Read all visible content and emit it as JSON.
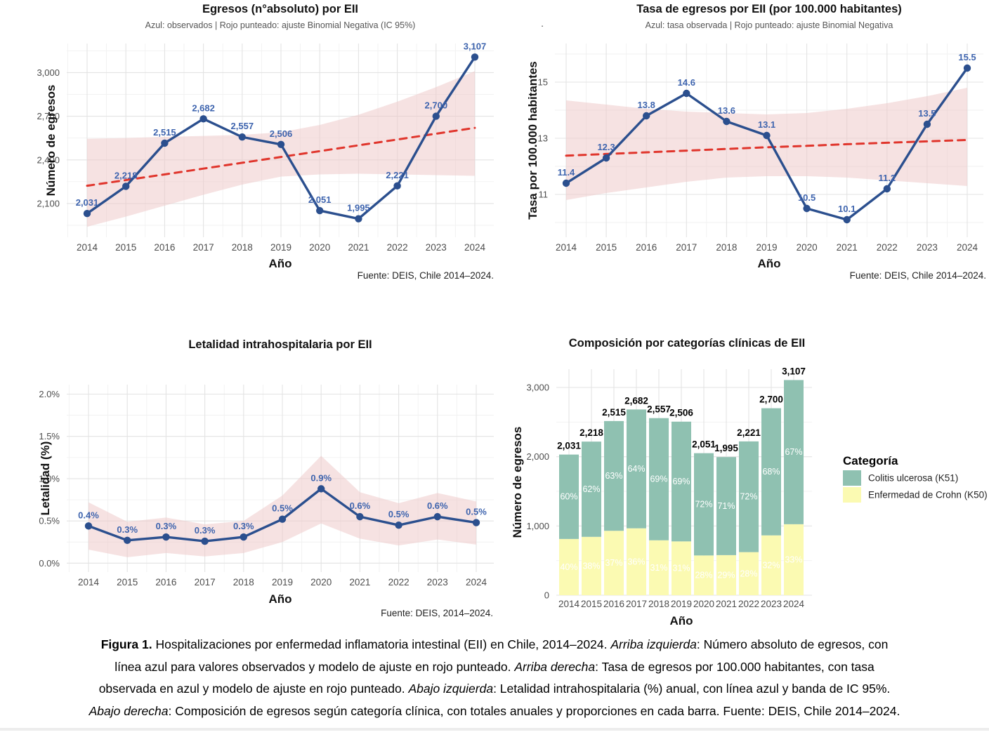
{
  "colors": {
    "blue_line": "#2b4f8e",
    "blue_point": "#2b4f8e",
    "blue_label": "#3e64ae",
    "red_dashed": "#e0352c",
    "ci_band": "#eec7c7",
    "teal": "#8fc1b1",
    "yellow": "#fbfab2",
    "grid_major": "#e3e3e3",
    "grid_minor": "#f1f1f1",
    "tick_text": "#4d4d4d",
    "subtitle_text": "#555555",
    "title_text": "#111111",
    "pct_text": "#ffffff",
    "source_text": "#222222"
  },
  "chart_data": [
    {
      "type": "line",
      "id": "egresos",
      "title": "Egresos (n°absoluto) por EII",
      "subtitle": "Azul: observados | Rojo punteado: ajuste Binomial Negativa (IC 95%)",
      "xlabel": "Año",
      "ylabel": "Número de egresos",
      "source": "Fuente: DEIS, Chile 2014–2024.",
      "categories": [
        "2014",
        "2015",
        "2016",
        "2017",
        "2018",
        "2019",
        "2020",
        "2021",
        "2022",
        "2023",
        "2024"
      ],
      "values": [
        2031,
        2218,
        2515,
        2682,
        2557,
        2506,
        2051,
        1995,
        2221,
        2700,
        3107
      ],
      "point_labels": [
        "2,031",
        "2,218",
        "2,515",
        "2,682",
        "2,557",
        "2,506",
        "2,051",
        "1,995",
        "2,221",
        "2,700",
        "3,107"
      ],
      "fit": {
        "values": [
          2222,
          2261,
          2300,
          2340,
          2380,
          2420,
          2460,
          2500,
          2540,
          2580,
          2620
        ],
        "upper": [
          2545,
          2550,
          2558,
          2565,
          2572,
          2590,
          2640,
          2710,
          2800,
          2900,
          3010
        ],
        "lower": [
          1940,
          2010,
          2085,
          2160,
          2230,
          2285,
          2300,
          2305,
          2300,
          2295,
          2290
        ]
      },
      "yticks": {
        "values": [
          2100,
          2400,
          2700,
          3000
        ],
        "labels": [
          "2,100",
          "2,400",
          "2,700",
          "3,000"
        ]
      },
      "ylim": [
        1868,
        3200
      ],
      "grid": true,
      "legend": null
    },
    {
      "type": "line",
      "id": "tasa",
      "title": "Tasa de egresos por EII (por 100.000 habitantes)",
      "subtitle": "Azul: tasa observada | Rojo punteado: ajuste Binomial Negativa",
      "stray_mark": ".",
      "xlabel": "Año",
      "ylabel": "Tasa por 100.000 habitantes",
      "source": "Fuente: DEIS, Chile 2014–2024.",
      "categories": [
        "2014",
        "2015",
        "2016",
        "2017",
        "2018",
        "2019",
        "2020",
        "2021",
        "2022",
        "2023",
        "2024"
      ],
      "values": [
        11.4,
        12.3,
        13.8,
        14.6,
        13.6,
        13.1,
        10.5,
        10.1,
        11.2,
        13.5,
        15.5
      ],
      "point_labels": [
        "11.4",
        "12.3",
        "13.8",
        "14.6",
        "13.6",
        "13.1",
        "10.5",
        "10.1",
        "11.2",
        "13.5",
        "15.5"
      ],
      "fit": {
        "values": [
          12.38,
          12.44,
          12.5,
          12.56,
          12.62,
          12.68,
          12.73,
          12.79,
          12.84,
          12.89,
          12.94
        ],
        "upper": [
          14.35,
          14.2,
          14.05,
          13.95,
          13.9,
          13.85,
          13.9,
          14.05,
          14.25,
          14.5,
          14.8
        ],
        "lower": [
          10.8,
          11.05,
          11.25,
          11.45,
          11.6,
          11.65,
          11.65,
          11.6,
          11.5,
          11.4,
          11.3
        ]
      },
      "yticks": {
        "values": [
          11,
          13,
          15
        ],
        "labels": [
          "11",
          "13",
          "15"
        ]
      },
      "ylim": [
        9.475,
        16.375
      ],
      "grid": true,
      "legend": null
    },
    {
      "type": "line",
      "id": "letalidad",
      "title": "Letalidad intrahospitalaria por EII",
      "subtitle": "",
      "xlabel": "Año",
      "ylabel": "Letalidad (%)",
      "source": "Fuente: DEIS, 2014–2024.",
      "categories": [
        "2014",
        "2015",
        "2016",
        "2017",
        "2018",
        "2019",
        "2020",
        "2021",
        "2022",
        "2023",
        "2024"
      ],
      "values": [
        0.44,
        0.27,
        0.31,
        0.26,
        0.31,
        0.52,
        0.88,
        0.55,
        0.45,
        0.55,
        0.48
      ],
      "point_labels": [
        "0.4%",
        "0.3%",
        "0.3%",
        "0.3%",
        "0.3%",
        "0.5%",
        "0.9%",
        "0.6%",
        "0.5%",
        "0.6%",
        "0.5%"
      ],
      "fit": {
        "values": null,
        "upper": [
          0.72,
          0.49,
          0.54,
          0.46,
          0.5,
          0.8,
          1.27,
          0.84,
          0.71,
          0.83,
          0.73
        ],
        "lower": [
          0.16,
          0.07,
          0.12,
          0.08,
          0.12,
          0.25,
          0.47,
          0.29,
          0.21,
          0.28,
          0.22
        ]
      },
      "yticks": {
        "values": [
          0,
          0.5,
          1.0,
          1.5,
          2.0
        ],
        "labels": [
          "0.0%",
          "0.5%",
          "1.0%",
          "1.5%",
          "2.0%"
        ]
      },
      "ylim": [
        -0.105,
        2.112
      ],
      "grid": true,
      "legend": null
    },
    {
      "type": "bar",
      "id": "composicion",
      "title": "Composición por categorías clínicas de EII",
      "subtitle": "",
      "xlabel": "Año",
      "ylabel": "Número de egresos",
      "source": "",
      "categories": [
        "2014",
        "2015",
        "2016",
        "2017",
        "2018",
        "2019",
        "2020",
        "2021",
        "2022",
        "2023",
        "2024"
      ],
      "totals": [
        2031,
        2218,
        2515,
        2682,
        2557,
        2506,
        2051,
        1995,
        2221,
        2700,
        3107
      ],
      "total_labels": [
        "2,031",
        "2,218",
        "2,515",
        "2,682",
        "2,557",
        "2,506",
        "2,051",
        "1,995",
        "2,221",
        "2,700",
        "3,107"
      ],
      "series": [
        {
          "name": "Enfermedad de Crohn (K50)",
          "color_key": "yellow",
          "values": [
            812,
            843,
            930,
            966,
            793,
            777,
            574,
            579,
            622,
            864,
            1025
          ],
          "pct_labels": [
            "40%",
            "38%",
            "37%",
            "36%",
            "31%",
            "31%",
            "28%",
            "29%",
            "28%",
            "32%",
            "33%"
          ]
        },
        {
          "name": "Colitis ulcerosa (K51)",
          "color_key": "teal",
          "values": [
            1219,
            1375,
            1585,
            1716,
            1764,
            1729,
            1477,
            1416,
            1599,
            1836,
            2082
          ],
          "pct_labels": [
            "60%",
            "62%",
            "63%",
            "64%",
            "69%",
            "69%",
            "72%",
            "71%",
            "72%",
            "68%",
            "67%"
          ]
        }
      ],
      "legend": {
        "title": "Categoría",
        "items": [
          {
            "label": "Colitis ulcerosa (K51)",
            "color_key": "teal"
          },
          {
            "label": "Enfermedad de Crohn (K50)",
            "color_key": "yellow"
          }
        ]
      },
      "yticks": {
        "values": [
          0,
          1000,
          2000,
          3000
        ],
        "labels": [
          "0",
          "1,000",
          "2,000",
          "3,000"
        ]
      },
      "ylim": [
        0,
        3000
      ],
      "grid": true
    }
  ],
  "caption": {
    "lines": [
      [
        {
          "t": "Figura 1.",
          "b": 1
        },
        {
          "t": " Hospitalizaciones por enfermedad inflamatoria intestinal (EII) en Chile, 2014–2024. "
        },
        {
          "t": "Arriba izquierda",
          "i": 1
        },
        {
          "t": ": Número absoluto de egresos, con"
        }
      ],
      [
        {
          "t": "línea azul para valores observados y modelo de ajuste en rojo punteado. "
        },
        {
          "t": "Arriba derecha",
          "i": 1
        },
        {
          "t": ": Tasa de egresos por 100.000 habitantes, con tasa"
        }
      ],
      [
        {
          "t": "observada en azul y modelo de ajuste en rojo punteado. "
        },
        {
          "t": "Abajo izquierda",
          "i": 1
        },
        {
          "t": ": Letalidad intrahospitalaria (%) anual, con línea azul y banda de IC 95%."
        }
      ],
      [
        {
          "t": "Abajo derecha",
          "i": 1
        },
        {
          "t": ": Composición de egresos según categoría clínica, con totales anuales y proporciones en cada barra. Fuente: DEIS, Chile 2014–2024."
        }
      ]
    ]
  }
}
